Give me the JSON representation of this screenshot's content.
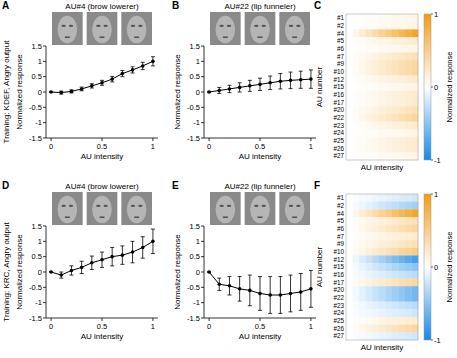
{
  "chart_data": [
    {
      "type": "line",
      "title": "A",
      "subtitle": "AU#4 (brow lowerer)",
      "annotation": "Training: KDEF, Angry output",
      "x_label": "AU intensity",
      "y_label": "Normalized response",
      "x": [
        0,
        0.1,
        0.2,
        0.3,
        0.4,
        0.5,
        0.6,
        0.7,
        0.8,
        0.9,
        1
      ],
      "values": [
        0,
        -0.02,
        0.02,
        0.1,
        0.2,
        0.3,
        0.42,
        0.6,
        0.72,
        0.85,
        1.0
      ],
      "errors": [
        0,
        0.05,
        0.05,
        0.06,
        0.07,
        0.08,
        0.09,
        0.1,
        0.1,
        0.12,
        0.15
      ],
      "color": "#000000",
      "marker": "circle",
      "xlim": [
        -0.05,
        1.05
      ],
      "xticks": [
        0,
        0.5,
        1
      ],
      "ylim": [
        -1.5,
        1.5
      ],
      "yticks": [
        -1.5,
        -1,
        -0.5,
        0,
        0.5,
        1,
        1.5
      ]
    },
    {
      "type": "line",
      "title": "B",
      "subtitle": "AU#22 (lip funneler)",
      "x_label": "AU intensity",
      "y_label": "Normalized response",
      "x": [
        0,
        0.1,
        0.2,
        0.3,
        0.4,
        0.5,
        0.6,
        0.7,
        0.8,
        0.9,
        1
      ],
      "values": [
        0,
        0.05,
        0.1,
        0.15,
        0.2,
        0.25,
        0.3,
        0.35,
        0.38,
        0.4,
        0.42
      ],
      "errors": [
        0,
        0.1,
        0.12,
        0.15,
        0.18,
        0.2,
        0.22,
        0.25,
        0.27,
        0.28,
        0.3
      ],
      "color": "#000000",
      "marker": "circle",
      "xlim": [
        -0.05,
        1.05
      ],
      "xticks": [
        0,
        0.5,
        1
      ],
      "ylim": [
        -1.5,
        1.5
      ],
      "yticks": [
        -1.5,
        -1,
        -0.5,
        0,
        0.5,
        1,
        1.5
      ]
    },
    {
      "type": "heatmap",
      "title": "C",
      "x_label": "AU intensity",
      "y_label": "AU number",
      "colorbar_label": "Normalized response",
      "rows": [
        "#1",
        "#2",
        "#4",
        "#5",
        "#6",
        "#7",
        "#9",
        "#10",
        "#12",
        "#15",
        "#16",
        "#17",
        "#20",
        "#22",
        "#23",
        "#24",
        "#25",
        "#26",
        "#27"
      ],
      "cells": [
        [
          0,
          0.01,
          0.02,
          0.03,
          0.04,
          0.05,
          0.06,
          0.07,
          0.08,
          0.09,
          0.1
        ],
        [
          0,
          0.01,
          0.02,
          0.03,
          0.04,
          0.05,
          0.06,
          0.07,
          0.08,
          0.09,
          0.1
        ],
        [
          0,
          0.09,
          0.18,
          0.27,
          0.36,
          0.45,
          0.54,
          0.63,
          0.72,
          0.81,
          0.9
        ],
        [
          0,
          0.02,
          0.04,
          0.06,
          0.08,
          0.1,
          0.12,
          0.14,
          0.16,
          0.18,
          0.2
        ],
        [
          0,
          0.01,
          0.02,
          0.03,
          0.04,
          0.05,
          0.06,
          0.07,
          0.08,
          0.09,
          0.1
        ],
        [
          0,
          0.03,
          0.06,
          0.09,
          0.12,
          0.15,
          0.18,
          0.21,
          0.24,
          0.27,
          0.3
        ],
        [
          0,
          0.04,
          0.08,
          0.12,
          0.16,
          0.2,
          0.24,
          0.28,
          0.32,
          0.36,
          0.4
        ],
        [
          0,
          0.04,
          0.08,
          0.12,
          0.16,
          0.2,
          0.24,
          0.28,
          0.32,
          0.36,
          0.4
        ],
        [
          0,
          0.02,
          0.04,
          0.06,
          0.08,
          0.1,
          0.12,
          0.14,
          0.16,
          0.18,
          0.2
        ],
        [
          0,
          0.01,
          0.02,
          0.03,
          0.04,
          0.05,
          0.06,
          0.07,
          0.08,
          0.09,
          0.1
        ],
        [
          0,
          0.02,
          0.04,
          0.06,
          0.08,
          0.1,
          0.12,
          0.14,
          0.16,
          0.18,
          0.2
        ],
        [
          0,
          0.02,
          0.04,
          0.06,
          0.08,
          0.1,
          0.12,
          0.14,
          0.16,
          0.18,
          0.2
        ],
        [
          0,
          0.03,
          0.06,
          0.09,
          0.12,
          0.15,
          0.18,
          0.21,
          0.24,
          0.27,
          0.3
        ],
        [
          0,
          0.04,
          0.08,
          0.12,
          0.16,
          0.2,
          0.24,
          0.28,
          0.32,
          0.36,
          0.4
        ],
        [
          0,
          0.02,
          0.04,
          0.06,
          0.08,
          0.1,
          0.12,
          0.14,
          0.16,
          0.18,
          0.2
        ],
        [
          0,
          0.01,
          0.02,
          0.03,
          0.04,
          0.05,
          0.06,
          0.07,
          0.08,
          0.09,
          0.1
        ],
        [
          0,
          0.02,
          0.04,
          0.06,
          0.08,
          0.1,
          0.12,
          0.14,
          0.16,
          0.18,
          0.2
        ],
        [
          0,
          0.02,
          0.04,
          0.06,
          0.08,
          0.1,
          0.12,
          0.14,
          0.16,
          0.18,
          0.2
        ],
        [
          0,
          0.01,
          0.02,
          0.03,
          0.04,
          0.05,
          0.06,
          0.07,
          0.08,
          0.09,
          0.1
        ]
      ],
      "color_range": [
        -1,
        1
      ],
      "color_ticks": [
        -1,
        0,
        1
      ]
    },
    {
      "type": "line",
      "title": "D",
      "subtitle": "AU#4 (brow lowerer)",
      "annotation": "Training: KRC, Angry output",
      "x_label": "AU intensity",
      "y_label": "Normalized response",
      "x": [
        0,
        0.1,
        0.2,
        0.3,
        0.4,
        0.5,
        0.6,
        0.7,
        0.8,
        0.9,
        1
      ],
      "values": [
        0,
        -0.1,
        0.05,
        0.15,
        0.3,
        0.4,
        0.5,
        0.55,
        0.65,
        0.8,
        1.0
      ],
      "errors": [
        0,
        0.1,
        0.15,
        0.2,
        0.22,
        0.25,
        0.3,
        0.3,
        0.35,
        0.35,
        0.4
      ],
      "color": "#000000",
      "marker": "circle",
      "xlim": [
        -0.05,
        1.05
      ],
      "xticks": [
        0,
        0.5,
        1
      ],
      "ylim": [
        -1.5,
        1.5
      ],
      "yticks": [
        -1.5,
        -1,
        -0.5,
        0,
        0.5,
        1,
        1.5
      ]
    },
    {
      "type": "line",
      "title": "E",
      "subtitle": "AU#22 (lip funneler)",
      "x_label": "AU intensity",
      "y_label": "Normalized response",
      "x": [
        0,
        0.1,
        0.2,
        0.3,
        0.4,
        0.5,
        0.6,
        0.7,
        0.8,
        0.9,
        1
      ],
      "values": [
        0,
        -0.4,
        -0.45,
        -0.55,
        -0.6,
        -0.7,
        -0.75,
        -0.75,
        -0.7,
        -0.65,
        -0.55
      ],
      "errors": [
        0,
        0.2,
        0.3,
        0.4,
        0.5,
        0.55,
        0.6,
        0.6,
        0.6,
        0.6,
        0.6
      ],
      "color": "#000000",
      "marker": "circle",
      "xlim": [
        -0.05,
        1.05
      ],
      "xticks": [
        0,
        0.5,
        1
      ],
      "ylim": [
        -1.5,
        1.5
      ],
      "yticks": [
        -1.5,
        -1,
        -0.5,
        0,
        0.5,
        1,
        1.5
      ]
    },
    {
      "type": "heatmap",
      "title": "F",
      "x_label": "AU intensity",
      "y_label": "AU number",
      "colorbar_label": "Normalized response",
      "rows": [
        "#1",
        "#2",
        "#4",
        "#5",
        "#6",
        "#7",
        "#9",
        "#10",
        "#12",
        "#15",
        "#16",
        "#17",
        "#20",
        "#22",
        "#23",
        "#24",
        "#25",
        "#26",
        "#27"
      ],
      "cells": [
        [
          0,
          -0.02,
          -0.04,
          -0.06,
          -0.08,
          -0.1,
          -0.12,
          -0.14,
          -0.16,
          -0.18,
          -0.2
        ],
        [
          0,
          -0.04,
          -0.08,
          -0.12,
          -0.16,
          -0.2,
          -0.24,
          -0.28,
          -0.32,
          -0.36,
          -0.4
        ],
        [
          0,
          0.09,
          0.18,
          0.27,
          0.36,
          0.45,
          0.54,
          0.63,
          0.72,
          0.81,
          0.9
        ],
        [
          0,
          0.03,
          0.06,
          0.09,
          0.12,
          0.15,
          0.18,
          0.21,
          0.24,
          0.27,
          0.3
        ],
        [
          0,
          0.04,
          0.08,
          0.12,
          0.16,
          0.2,
          0.24,
          0.28,
          0.32,
          0.36,
          0.4
        ],
        [
          0,
          0.02,
          0.04,
          0.06,
          0.08,
          0.1,
          0.12,
          0.14,
          0.16,
          0.18,
          0.2
        ],
        [
          0,
          0.03,
          0.06,
          0.09,
          0.12,
          0.15,
          0.18,
          0.21,
          0.24,
          0.27,
          0.3
        ],
        [
          0,
          0.05,
          0.1,
          0.15,
          0.2,
          0.25,
          0.3,
          0.35,
          0.4,
          0.45,
          0.5
        ],
        [
          0,
          -0.08,
          -0.16,
          -0.24,
          -0.32,
          -0.4,
          -0.48,
          -0.56,
          -0.64,
          -0.72,
          -0.8
        ],
        [
          0,
          -0.05,
          -0.1,
          -0.15,
          -0.2,
          -0.25,
          -0.3,
          -0.35,
          -0.4,
          -0.45,
          -0.5
        ],
        [
          0,
          -0.03,
          -0.06,
          -0.09,
          -0.12,
          -0.15,
          -0.18,
          -0.21,
          -0.24,
          -0.27,
          -0.3
        ],
        [
          0,
          0.04,
          0.08,
          0.12,
          0.16,
          0.2,
          0.24,
          0.28,
          0.32,
          0.36,
          0.4
        ],
        [
          0,
          -0.06,
          -0.12,
          -0.18,
          -0.24,
          -0.3,
          -0.36,
          -0.42,
          -0.48,
          -0.54,
          -0.6
        ],
        [
          0,
          -0.06,
          -0.12,
          -0.18,
          -0.24,
          -0.3,
          -0.36,
          -0.42,
          -0.48,
          -0.54,
          -0.6
        ],
        [
          0,
          -0.03,
          -0.06,
          -0.09,
          -0.12,
          -0.15,
          -0.18,
          -0.21,
          -0.24,
          -0.27,
          -0.3
        ],
        [
          0,
          -0.02,
          -0.04,
          -0.06,
          -0.08,
          -0.1,
          -0.12,
          -0.14,
          -0.16,
          -0.18,
          -0.2
        ],
        [
          0,
          0.02,
          0.04,
          0.06,
          0.08,
          0.1,
          0.12,
          0.14,
          0.16,
          0.18,
          0.2
        ],
        [
          0,
          0.04,
          0.08,
          0.12,
          0.16,
          0.2,
          0.24,
          0.28,
          0.32,
          0.36,
          0.4
        ],
        [
          0,
          -0.02,
          -0.04,
          -0.06,
          -0.08,
          -0.1,
          -0.12,
          -0.14,
          -0.16,
          -0.18,
          -0.2
        ]
      ],
      "color_range": [
        -1,
        1
      ],
      "color_ticks": [
        -1,
        0,
        1
      ]
    }
  ]
}
